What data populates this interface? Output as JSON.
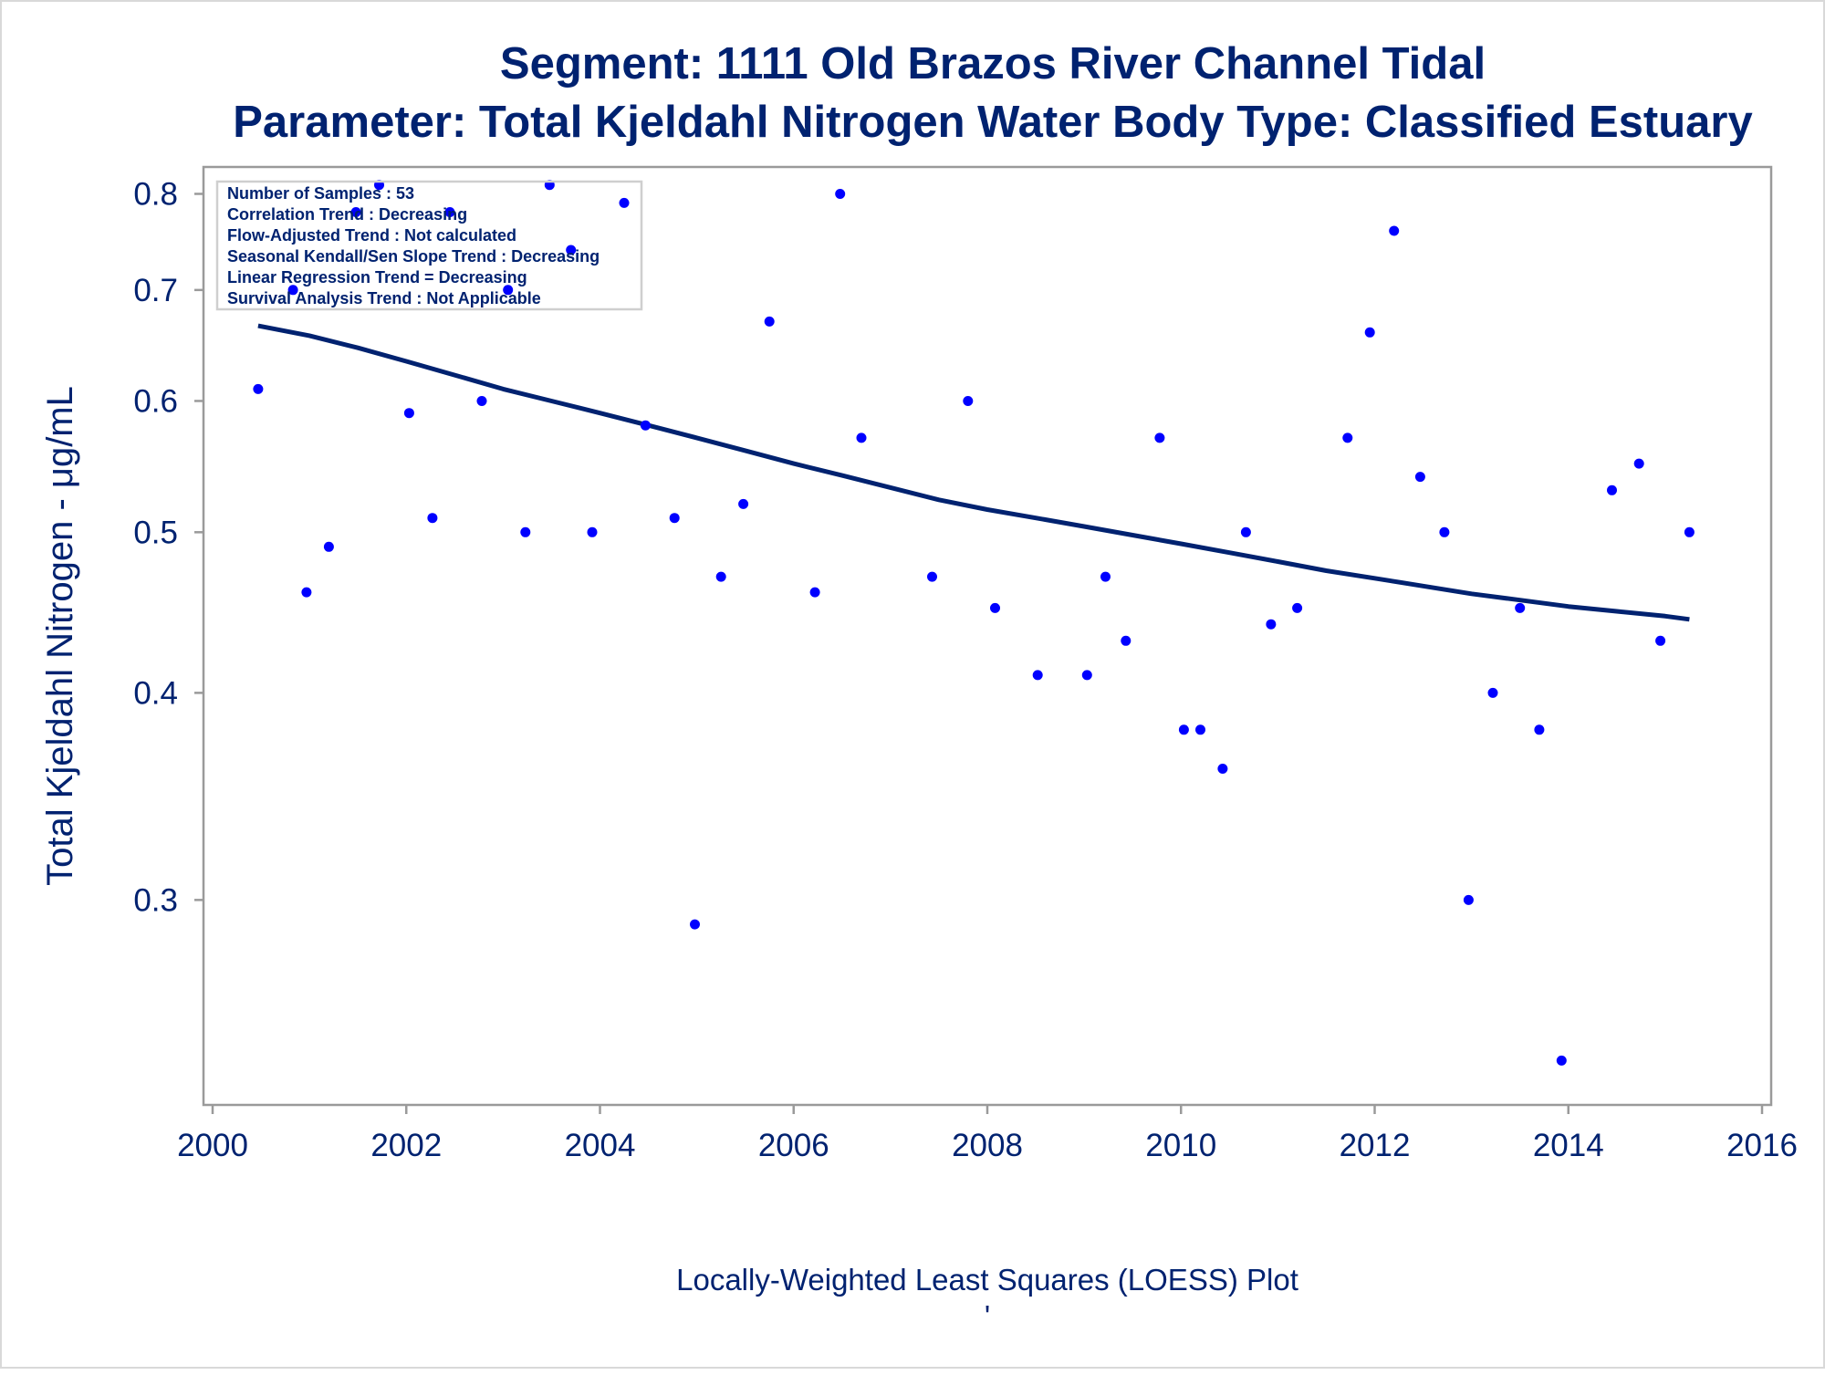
{
  "chart_data": {
    "type": "scatter",
    "title": "Segment: 1111  Old Brazos River Channel Tidal",
    "subtitle": "Parameter: Total Kjeldahl Nitrogen   Water Body Type: Classified Estuary",
    "ylabel": "Total Kjeldahl Nitrogen -  μg/mL",
    "xlabel": "Locally-Weighted Least Squares (LOESS) Plot",
    "footnote_mark": "'",
    "y_scale": "log",
    "xlim": [
      2000,
      2016
    ],
    "ylim": [
      0.23,
      0.82
    ],
    "x_ticks": [
      2000,
      2002,
      2004,
      2006,
      2008,
      2010,
      2012,
      2014,
      2016
    ],
    "x_tick_labels": [
      "2000",
      "2002",
      "2004",
      "2006",
      "2008",
      "2010",
      "2012",
      "2014",
      "2016"
    ],
    "y_ticks": [
      0.3,
      0.4,
      0.5,
      0.6,
      0.7,
      0.8
    ],
    "y_tick_labels": [
      "0.3",
      "0.4",
      "0.5",
      "0.6",
      "0.7",
      "0.8"
    ],
    "grid": false,
    "info_box": {
      "placement": "top-left",
      "lines": [
        "Number of Samples : 53",
        "Correlation Trend : Decreasing",
        "Flow-Adjusted Trend : Not calculated",
        "Seasonal Kendall/Sen Slope Trend : Decreasing",
        "Linear Regression Trend = Decreasing",
        "Survival Analysis Trend : Not Applicable"
      ]
    },
    "series": [
      {
        "kind": "points",
        "color": "#0000ff",
        "points": [
          [
            2000.47,
            0.61
          ],
          [
            2000.83,
            0.7
          ],
          [
            2000.97,
            0.46
          ],
          [
            2001.2,
            0.49
          ],
          [
            2001.48,
            0.78
          ],
          [
            2001.72,
            0.81
          ],
          [
            2002.03,
            0.59
          ],
          [
            2002.27,
            0.51
          ],
          [
            2002.45,
            0.78
          ],
          [
            2002.78,
            0.6
          ],
          [
            2003.05,
            0.7
          ],
          [
            2003.23,
            0.5
          ],
          [
            2003.48,
            0.81
          ],
          [
            2003.7,
            0.74
          ],
          [
            2003.92,
            0.5
          ],
          [
            2004.25,
            0.79
          ],
          [
            2004.47,
            0.58
          ],
          [
            2004.77,
            0.51
          ],
          [
            2004.98,
            0.29
          ],
          [
            2005.25,
            0.47
          ],
          [
            2005.48,
            0.52
          ],
          [
            2005.75,
            0.67
          ],
          [
            2006.22,
            0.46
          ],
          [
            2006.48,
            0.8
          ],
          [
            2006.7,
            0.57
          ],
          [
            2007.43,
            0.47
          ],
          [
            2007.8,
            0.6
          ],
          [
            2008.08,
            0.45
          ],
          [
            2008.52,
            0.41
          ],
          [
            2009.03,
            0.41
          ],
          [
            2009.22,
            0.47
          ],
          [
            2009.43,
            0.43
          ],
          [
            2009.78,
            0.57
          ],
          [
            2010.03,
            0.38
          ],
          [
            2010.2,
            0.38
          ],
          [
            2010.43,
            0.36
          ],
          [
            2010.67,
            0.5
          ],
          [
            2010.93,
            0.44
          ],
          [
            2011.2,
            0.45
          ],
          [
            2011.72,
            0.57
          ],
          [
            2011.95,
            0.66
          ],
          [
            2012.2,
            0.76
          ],
          [
            2012.47,
            0.54
          ],
          [
            2012.72,
            0.5
          ],
          [
            2012.97,
            0.3
          ],
          [
            2013.22,
            0.4
          ],
          [
            2013.5,
            0.45
          ],
          [
            2013.7,
            0.38
          ],
          [
            2013.93,
            0.24
          ],
          [
            2014.45,
            0.53
          ],
          [
            2014.73,
            0.55
          ],
          [
            2014.95,
            0.43
          ],
          [
            2015.25,
            0.5
          ]
        ]
      },
      {
        "kind": "loess",
        "color": "#002270",
        "points": [
          [
            2000.47,
            0.666
          ],
          [
            2001.0,
            0.657
          ],
          [
            2001.5,
            0.646
          ],
          [
            2002.0,
            0.634
          ],
          [
            2002.5,
            0.622
          ],
          [
            2003.0,
            0.61
          ],
          [
            2003.5,
            0.6
          ],
          [
            2004.0,
            0.59
          ],
          [
            2004.5,
            0.58
          ],
          [
            2005.0,
            0.57
          ],
          [
            2005.5,
            0.56
          ],
          [
            2006.0,
            0.55
          ],
          [
            2006.5,
            0.541
          ],
          [
            2007.0,
            0.532
          ],
          [
            2007.5,
            0.523
          ],
          [
            2008.0,
            0.516
          ],
          [
            2008.5,
            0.51
          ],
          [
            2009.0,
            0.504
          ],
          [
            2009.5,
            0.498
          ],
          [
            2010.0,
            0.492
          ],
          [
            2010.5,
            0.486
          ],
          [
            2011.0,
            0.48
          ],
          [
            2011.5,
            0.474
          ],
          [
            2012.0,
            0.469
          ],
          [
            2012.5,
            0.464
          ],
          [
            2013.0,
            0.459
          ],
          [
            2013.5,
            0.455
          ],
          [
            2014.0,
            0.451
          ],
          [
            2014.5,
            0.448
          ],
          [
            2015.0,
            0.445
          ],
          [
            2015.25,
            0.443
          ]
        ]
      }
    ]
  }
}
